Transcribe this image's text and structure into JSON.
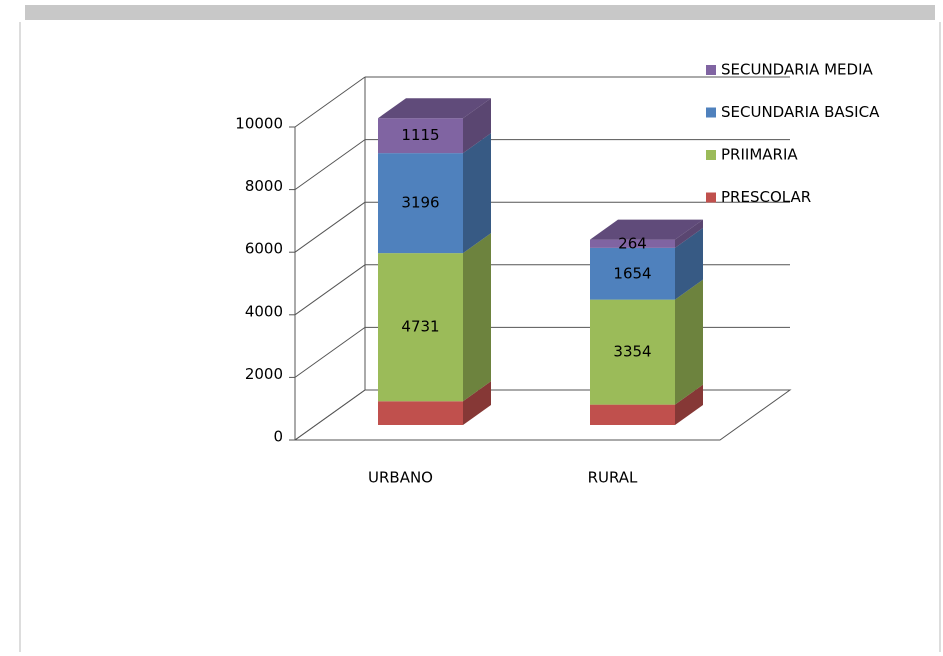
{
  "chart_data": {
    "type": "bar3d_stacked",
    "categories": [
      "URBANO",
      "RURAL"
    ],
    "series": [
      {
        "name": "PRESCOLAR",
        "color": "#c0504d",
        "values": [
          760,
          650
        ]
      },
      {
        "name": "PRIIMARIA",
        "color": "#9bbb59",
        "values": [
          4731,
          3354
        ]
      },
      {
        "name": "SECUNDARIA BASICA",
        "color": "#4f81bd",
        "values": [
          3196,
          1654
        ]
      },
      {
        "name": "SECUNDARIA MEDIA",
        "color": "#8064a2",
        "values": [
          1115,
          264
        ]
      }
    ],
    "ylim": [
      0,
      10000
    ],
    "yticks": [
      0,
      2000,
      4000,
      6000,
      8000,
      10000
    ],
    "grid": true
  }
}
